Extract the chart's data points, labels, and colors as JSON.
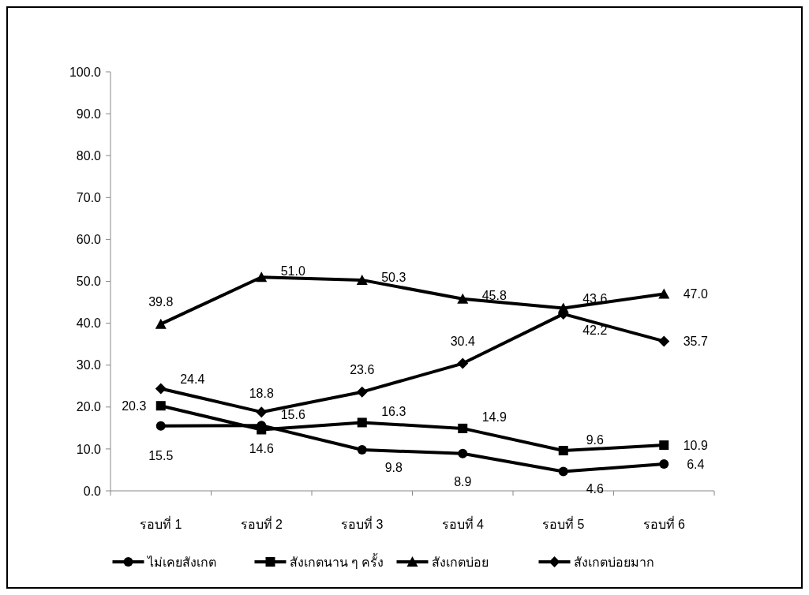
{
  "chart_data": {
    "type": "line",
    "categories": [
      "รอบที่ 1",
      "รอบที่ 2",
      "รอบที่ 3",
      "รอบที่ 4",
      "รอบที่ 5",
      "รอบที่ 6"
    ],
    "ylim": [
      0,
      100
    ],
    "yticks": [
      {
        "value": 0,
        "label": "0.0"
      },
      {
        "value": 10,
        "label": "10.0"
      },
      {
        "value": 20,
        "label": "20.0"
      },
      {
        "value": 30,
        "label": "30.0"
      },
      {
        "value": 40,
        "label": "40.0"
      },
      {
        "value": 50,
        "label": "50.0"
      },
      {
        "value": 60,
        "label": "60.0"
      },
      {
        "value": 70,
        "label": "70.0"
      },
      {
        "value": 80,
        "label": "80.0"
      },
      {
        "value": 90,
        "label": "90.0"
      },
      {
        "value": 100,
        "label": "100.0"
      }
    ],
    "grid": false,
    "legend": "bottom",
    "series": [
      {
        "name": "ไม่เคยสังเกต",
        "color": "#000000",
        "marker": "circle",
        "values": [
          15.5,
          15.6,
          9.8,
          8.9,
          4.6,
          6.4
        ],
        "value_labels": [
          "15.5",
          "15.6",
          "9.8",
          "8.9",
          "4.6",
          "6.4"
        ]
      },
      {
        "name": "สังเกตนาน ๆ ครั้ง",
        "color": "#000000",
        "marker": "square",
        "values": [
          20.3,
          14.6,
          16.3,
          14.9,
          9.6,
          10.9
        ],
        "value_labels": [
          "20.3",
          "14.6",
          "16.3",
          "14.9",
          "9.6",
          "10.9"
        ]
      },
      {
        "name": "สังเกตบ่อย",
        "color": "#000000",
        "marker": "triangle",
        "values": [
          39.8,
          51.0,
          50.3,
          45.8,
          43.6,
          47.0
        ],
        "value_labels": [
          "39.8",
          "51.0",
          "50.3",
          "45.8",
          "43.6",
          "47.0"
        ]
      },
      {
        "name": "สังเกตบ่อยมาก",
        "color": "#000000",
        "marker": "diamond",
        "values": [
          24.4,
          18.8,
          23.6,
          30.4,
          42.2,
          35.7
        ],
        "value_labels": [
          "24.4",
          "18.8",
          "23.6",
          "30.4",
          "42.2",
          "35.7"
        ]
      }
    ]
  }
}
